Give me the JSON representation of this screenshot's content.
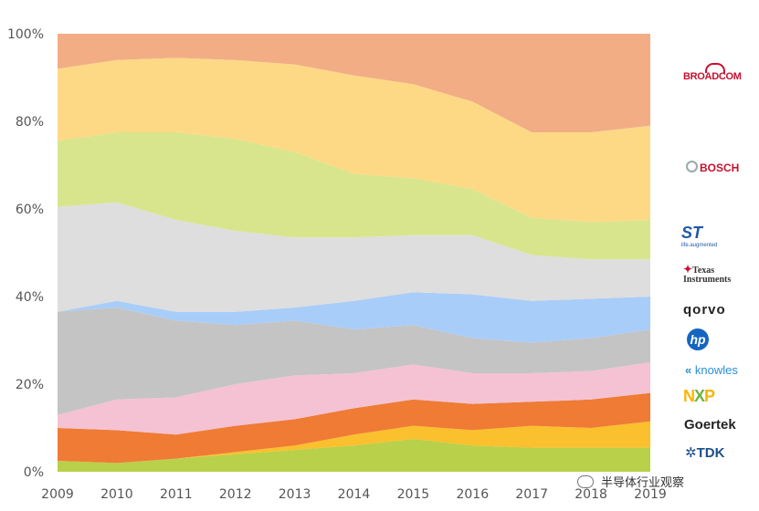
{
  "chart_data": {
    "type": "area",
    "stacked": true,
    "normalized": true,
    "x": [
      "2009",
      "2010",
      "2011",
      "2012",
      "2013",
      "2014",
      "2015",
      "2016",
      "2017",
      "2018",
      "2019"
    ],
    "ylim": [
      0,
      100
    ],
    "yticks": [
      "0%",
      "20%",
      "40%",
      "60%",
      "80%",
      "100%"
    ],
    "grid": false,
    "series": [
      {
        "name": "TDK",
        "color": "#b9d04a",
        "values": [
          2.5,
          2.0,
          3.0,
          4.0,
          5.0,
          6.0,
          7.5,
          6.0,
          5.5,
          5.5,
          5.5
        ]
      },
      {
        "name": "Goertek",
        "color": "#fbc02d",
        "values": [
          0.0,
          0.0,
          0.0,
          0.5,
          1.0,
          2.5,
          3.0,
          3.5,
          5.0,
          4.5,
          6.0
        ]
      },
      {
        "name": "NXP",
        "color": "#ef7b35",
        "values": [
          7.5,
          7.5,
          5.5,
          6.0,
          6.0,
          6.0,
          6.0,
          6.0,
          5.5,
          6.5,
          6.5
        ]
      },
      {
        "name": "Knowles",
        "color": "#f4c2d3",
        "values": [
          3.0,
          7.0,
          8.5,
          9.5,
          10.0,
          8.0,
          8.0,
          7.0,
          6.5,
          6.5,
          7.0
        ]
      },
      {
        "name": "HP",
        "color": "#c4c4c4",
        "values": [
          23.5,
          21.0,
          17.5,
          13.5,
          12.5,
          10.0,
          9.0,
          8.0,
          7.0,
          7.5,
          7.5
        ]
      },
      {
        "name": "Qorvo",
        "color": "#a9cdf9",
        "values": [
          0.0,
          1.5,
          2.0,
          3.0,
          3.0,
          6.5,
          7.5,
          10.0,
          9.5,
          9.0,
          7.5
        ]
      },
      {
        "name": "Texas Instruments",
        "color": "#dedede",
        "values": [
          24.0,
          22.5,
          21.0,
          18.5,
          16.0,
          14.5,
          13.0,
          13.5,
          10.5,
          9.0,
          8.5
        ]
      },
      {
        "name": "ST",
        "color": "#d8e58c",
        "values": [
          15.0,
          16.0,
          20.0,
          21.0,
          19.5,
          14.5,
          13.0,
          10.5,
          8.5,
          8.5,
          9.0
        ]
      },
      {
        "name": "Bosch",
        "color": "#fdd986",
        "values": [
          16.5,
          16.5,
          17.0,
          18.0,
          20.0,
          22.5,
          21.5,
          20.0,
          19.5,
          20.5,
          21.5
        ]
      },
      {
        "name": "Broadcom",
        "color": "#f2ad85",
        "values": [
          8.0,
          6.0,
          5.5,
          6.0,
          7.0,
          9.5,
          11.5,
          15.5,
          22.5,
          22.5,
          21.0
        ]
      }
    ]
  },
  "legend": {
    "broadcom": "BROADCOM",
    "bosch": "BOSCH",
    "st": "ST",
    "st_tagline": "life.augmented",
    "ti_line1": "Texas",
    "ti_line2": "Instruments",
    "qorvo": "qorvo",
    "hp": "hp",
    "knowles": "knowles",
    "nxp_n": "N",
    "nxp_x": "X",
    "nxp_p": "P",
    "goertek": "Goertek",
    "tdk": "TDK"
  },
  "watermark": "半导体行业观察"
}
